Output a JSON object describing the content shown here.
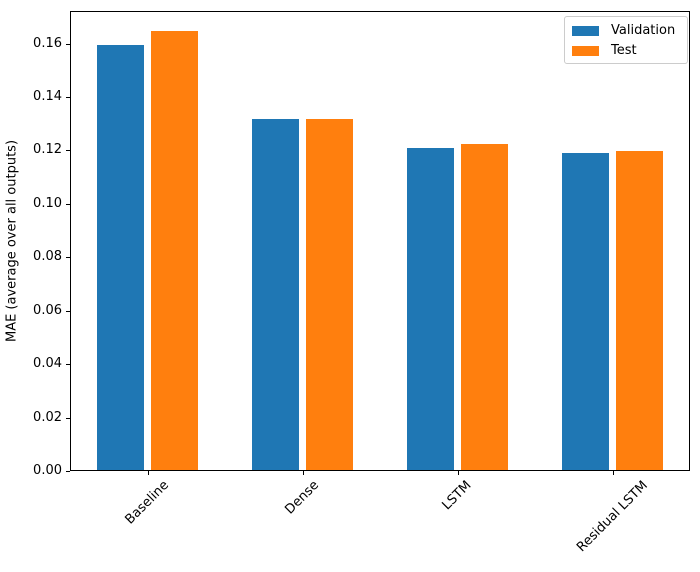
{
  "chart_data": {
    "type": "bar",
    "title": "",
    "xlabel": "",
    "ylabel": "MAE (average over all outputs)",
    "categories": [
      "Baseline",
      "Dense",
      "LSTM",
      "Residual LSTM"
    ],
    "series": [
      {
        "name": "Validation",
        "color": "#1f77b4",
        "values": [
          0.159,
          0.1315,
          0.1205,
          0.1185
        ]
      },
      {
        "name": "Test",
        "color": "#ff7f0e",
        "values": [
          0.1645,
          0.1315,
          0.122,
          0.1195
        ]
      }
    ],
    "ylim": [
      0,
      0.1722
    ],
    "yticks": [
      0.0,
      0.02,
      0.04,
      0.06,
      0.08,
      0.1,
      0.12,
      0.14,
      0.16
    ],
    "ytick_labels": [
      "0.00",
      "0.02",
      "0.04",
      "0.06",
      "0.08",
      "0.10",
      "0.12",
      "0.14",
      "0.16"
    ],
    "x_tick_rotation_deg": 45,
    "grid": false,
    "bar_width_fraction": 0.3,
    "bar_offset_fractions": [
      -0.175,
      0.175
    ],
    "legend": {
      "position": "upper right",
      "entries": [
        "Validation",
        "Test"
      ]
    }
  }
}
